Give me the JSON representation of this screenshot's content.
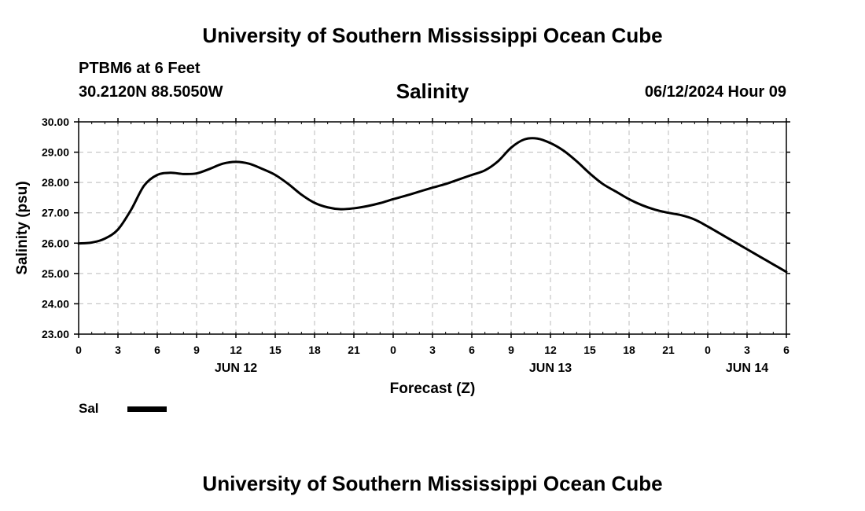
{
  "header": {
    "title": "University of Southern Mississippi Ocean Cube",
    "station": "PTBM6 at 6 Feet",
    "coords": "30.2120N  88.5050W",
    "timestamp": "06/12/2024 Hour 09"
  },
  "footer": {
    "title": "University of Southern Mississippi Ocean Cube"
  },
  "legend": {
    "label": "Sal",
    "color": "#000000"
  },
  "chart_data": {
    "type": "line",
    "title": "Salinity",
    "xlabel": "Forecast (Z)",
    "ylabel": "Salinity (psu)",
    "ylim": [
      23,
      30
    ],
    "xlim": [
      0,
      54
    ],
    "yticks": [
      "23.00",
      "24.00",
      "25.00",
      "26.00",
      "27.00",
      "28.00",
      "29.00",
      "30.00"
    ],
    "xtick_labels": [
      "0",
      "3",
      "6",
      "9",
      "12",
      "15",
      "18",
      "21",
      "0",
      "3",
      "6",
      "9",
      "12",
      "15",
      "18",
      "21",
      "0",
      "3",
      "6"
    ],
    "date_labels": [
      {
        "label": "JUN 12",
        "hour": 12
      },
      {
        "label": "JUN 13",
        "hour": 36
      },
      {
        "label": "JUN 14",
        "hour": 51
      }
    ],
    "grid": true,
    "series": [
      {
        "name": "Sal",
        "x": [
          0,
          1,
          2,
          3,
          4,
          5,
          6,
          7,
          8,
          9,
          10,
          11,
          12,
          13,
          14,
          15,
          16,
          17,
          18,
          19,
          20,
          21,
          22,
          23,
          24,
          25,
          26,
          27,
          28,
          29,
          30,
          31,
          32,
          33,
          34,
          35,
          36,
          37,
          38,
          39,
          40,
          41,
          42,
          43,
          44,
          45,
          46,
          47,
          48,
          49,
          50,
          51,
          52,
          53,
          54
        ],
        "values": [
          25.99,
          26.02,
          26.15,
          26.45,
          27.1,
          27.9,
          28.25,
          28.32,
          28.28,
          28.3,
          28.45,
          28.62,
          28.68,
          28.62,
          28.45,
          28.25,
          27.95,
          27.6,
          27.33,
          27.18,
          27.12,
          27.15,
          27.22,
          27.32,
          27.45,
          27.57,
          27.7,
          27.83,
          27.95,
          28.1,
          28.25,
          28.4,
          28.7,
          29.15,
          29.42,
          29.45,
          29.3,
          29.05,
          28.7,
          28.3,
          27.95,
          27.7,
          27.45,
          27.25,
          27.1,
          27.0,
          26.92,
          26.78,
          26.55,
          26.3,
          26.05,
          25.8,
          25.55,
          25.3,
          25.05
        ]
      }
    ]
  }
}
